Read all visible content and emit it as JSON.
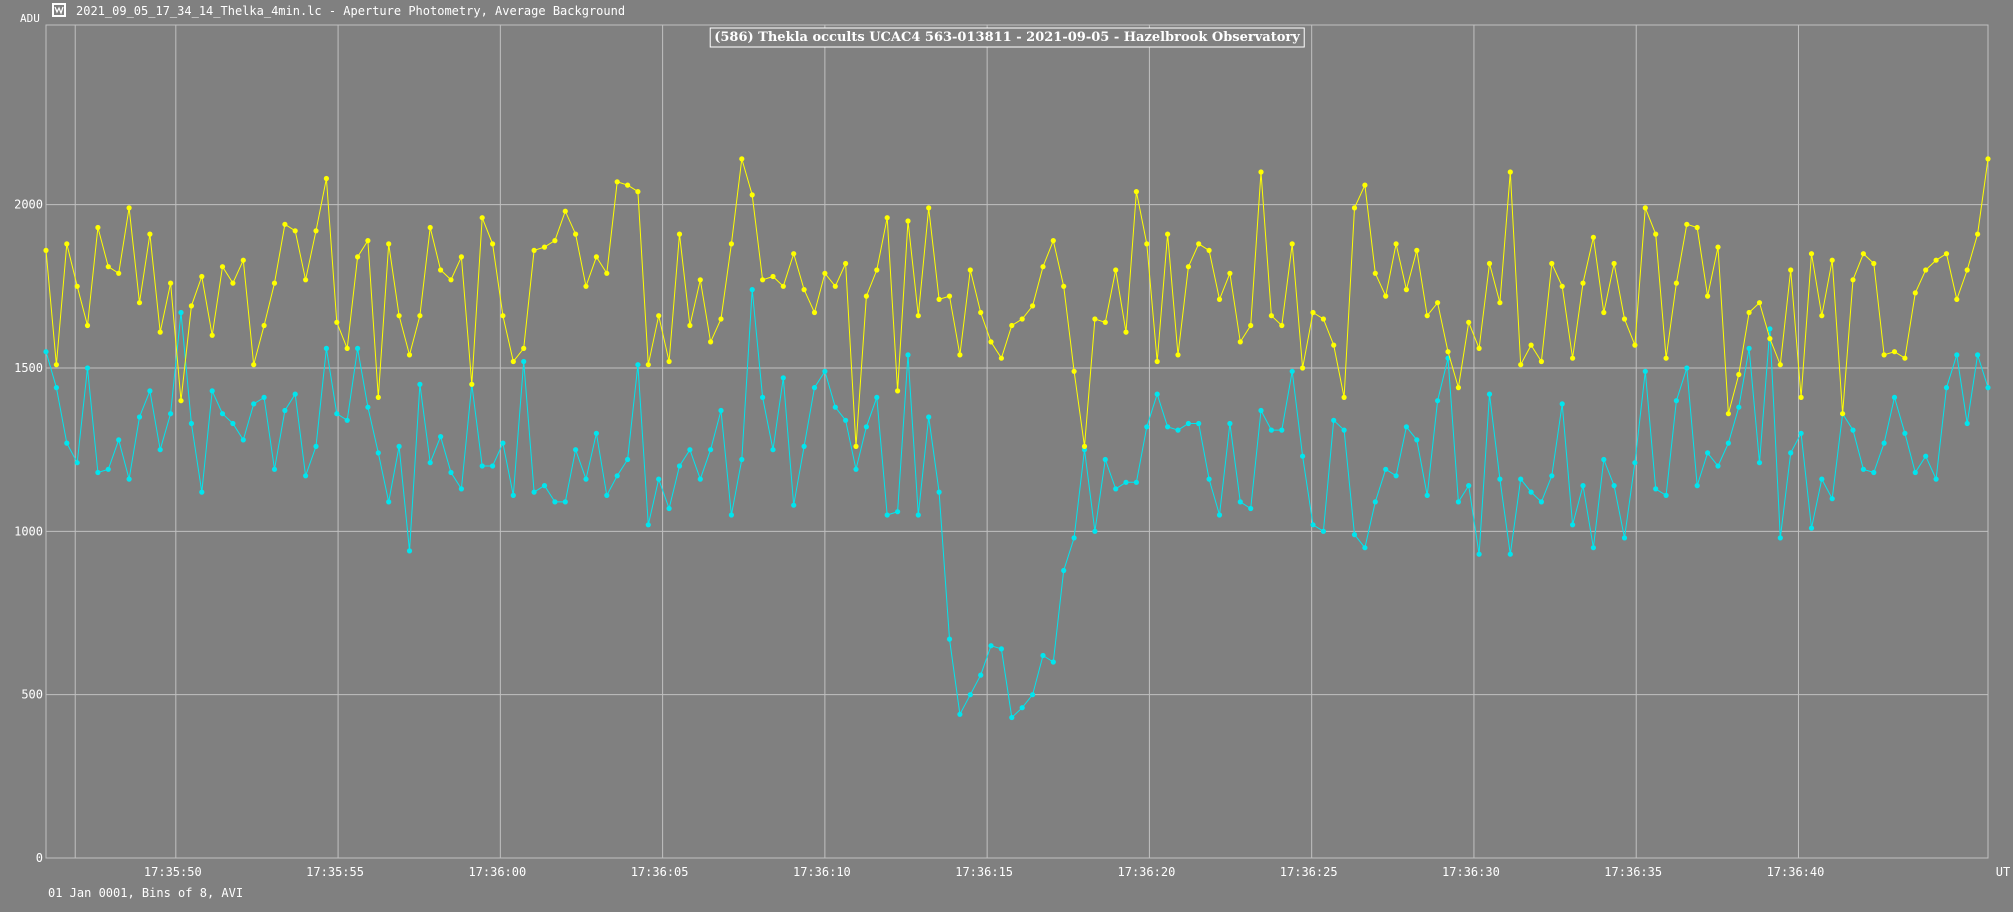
{
  "window": {
    "title": "2021_09_05_17_34_14_Thelka_4min.lc - Aperture Photometry, Average Background",
    "icon": "lightcurve-app-icon"
  },
  "footer": {
    "text": "01 Jan 0001, Bins of 8, AVI"
  },
  "colors": {
    "background": "#808080",
    "grid": "#c0c0c0",
    "axis_text": "#ffffff",
    "series_target": "#00e5ee",
    "series_comparison": "#ffff00"
  },
  "chart_data": {
    "type": "line",
    "title": "(586) Thekla occults UCAC4 563-013811 - 2021-09-05 - Hazelbrook Observatory",
    "ylabel": "ADU",
    "xlabel": "UT",
    "ylim": [
      0,
      2550
    ],
    "y_ticks": [
      0,
      500,
      1000,
      1500,
      2000
    ],
    "x_ticks": [
      "17:35:50",
      "17:35:55",
      "17:36:00",
      "17:36:05",
      "17:36:10",
      "17:36:15",
      "17:36:20",
      "17:36:25",
      "17:36:30",
      "17:36:35",
      "17:36:40"
    ],
    "x_start_label": "17:35:46",
    "x_step_seconds": 0.32,
    "grid": true,
    "series": [
      {
        "key": "target",
        "color": "#00e5ee",
        "values": [
          1550,
          1440,
          1270,
          1210,
          1500,
          1180,
          1190,
          1280,
          1160,
          1350,
          1430,
          1250,
          1360,
          1670,
          1330,
          1120,
          1430,
          1360,
          1330,
          1280,
          1390,
          1410,
          1190,
          1370,
          1420,
          1170,
          1260,
          1560,
          1360,
          1340,
          1560,
          1380,
          1240,
          1090,
          1260,
          940,
          1450,
          1210,
          1290,
          1180,
          1130,
          1450,
          1200,
          1200,
          1270,
          1110,
          1520,
          1120,
          1140,
          1090,
          1090,
          1250,
          1160,
          1300,
          1110,
          1170,
          1220,
          1510,
          1020,
          1160,
          1070,
          1200,
          1250,
          1160,
          1250,
          1370,
          1050,
          1220,
          1740,
          1410,
          1250,
          1470,
          1080,
          1260,
          1440,
          1490,
          1380,
          1340,
          1190,
          1320,
          1410,
          1050,
          1060,
          1540,
          1050,
          1350,
          1120,
          670,
          440,
          500,
          560,
          650,
          640,
          430,
          460,
          500,
          620,
          600,
          880,
          980,
          1250,
          1000,
          1220,
          1130,
          1150,
          1150,
          1320,
          1420,
          1320,
          1310,
          1330,
          1330,
          1160,
          1050,
          1330,
          1090,
          1070,
          1370,
          1310,
          1310,
          1490,
          1230,
          1020,
          1000,
          1340,
          1310,
          990,
          950,
          1090,
          1190,
          1170,
          1320,
          1280,
          1110,
          1400,
          1530,
          1090,
          1140,
          930,
          1420,
          1160,
          930,
          1160,
          1120,
          1090,
          1170,
          1390,
          1020,
          1140,
          950,
          1220,
          1140,
          980,
          1210,
          1490,
          1130,
          1110,
          1400,
          1500,
          1140,
          1240,
          1200,
          1270,
          1380,
          1560,
          1210,
          1620,
          980,
          1240,
          1300,
          1010,
          1160,
          1100,
          1360,
          1310,
          1190,
          1180,
          1270,
          1410,
          1300,
          1180,
          1230,
          1160,
          1440,
          1540,
          1330,
          1540,
          1440
        ]
      },
      {
        "key": "comparison",
        "color": "#ffff00",
        "values": [
          1860,
          1510,
          1880,
          1750,
          1630,
          1930,
          1810,
          1790,
          1990,
          1700,
          1910,
          1610,
          1760,
          1400,
          1690,
          1780,
          1600,
          1810,
          1760,
          1830,
          1510,
          1630,
          1760,
          1940,
          1920,
          1770,
          1920,
          2080,
          1640,
          1560,
          1840,
          1890,
          1410,
          1880,
          1660,
          1540,
          1660,
          1930,
          1800,
          1770,
          1840,
          1450,
          1960,
          1880,
          1660,
          1520,
          1560,
          1860,
          1870,
          1890,
          1980,
          1910,
          1750,
          1840,
          1790,
          2070,
          2060,
          2040,
          1510,
          1660,
          1520,
          1910,
          1630,
          1770,
          1580,
          1650,
          1880,
          2140,
          2030,
          1770,
          1780,
          1750,
          1850,
          1740,
          1670,
          1790,
          1750,
          1820,
          1260,
          1720,
          1800,
          1960,
          1430,
          1950,
          1660,
          1990,
          1710,
          1720,
          1540,
          1800,
          1670,
          1580,
          1530,
          1630,
          1650,
          1690,
          1810,
          1890,
          1750,
          1490,
          1260,
          1650,
          1640,
          1800,
          1610,
          2040,
          1880,
          1520,
          1910,
          1540,
          1810,
          1880,
          1860,
          1710,
          1790,
          1580,
          1630,
          2100,
          1660,
          1630,
          1880,
          1500,
          1670,
          1650,
          1570,
          1410,
          1990,
          2060,
          1790,
          1720,
          1880,
          1740,
          1860,
          1660,
          1700,
          1550,
          1440,
          1640,
          1560,
          1820,
          1700,
          2100,
          1510,
          1570,
          1520,
          1820,
          1750,
          1530,
          1760,
          1900,
          1670,
          1820,
          1650,
          1570,
          1990,
          1910,
          1530,
          1760,
          1940,
          1930,
          1720,
          1870,
          1360,
          1480,
          1670,
          1700,
          1590,
          1510,
          1800,
          1410,
          1850,
          1660,
          1830,
          1360,
          1770,
          1850,
          1820,
          1540,
          1550,
          1530,
          1730,
          1800,
          1830,
          1850,
          1710,
          1800,
          1910,
          2140
        ]
      }
    ]
  }
}
